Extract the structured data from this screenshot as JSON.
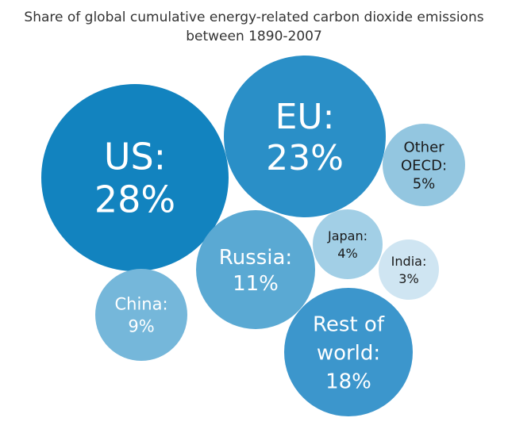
{
  "chart_data": {
    "type": "bubble",
    "title_lines": [
      "Share of global cumulative energy-related carbon dioxide emissions",
      "between 1890-2007"
    ],
    "unit": "%",
    "series": [
      {
        "name": "US",
        "label_lines": [
          "US:",
          "28%"
        ],
        "value": 28,
        "color": "#1283bf"
      },
      {
        "name": "EU",
        "label_lines": [
          "EU:",
          "23%"
        ],
        "value": 23,
        "color": "#2a8fc7"
      },
      {
        "name": "Other OECD",
        "label_lines": [
          "Other",
          "OECD:",
          "5%"
        ],
        "value": 5,
        "color": "#93c6e0"
      },
      {
        "name": "Russia",
        "label_lines": [
          "Russia:",
          "11%"
        ],
        "value": 11,
        "color": "#5aa9d3"
      },
      {
        "name": "Japan",
        "label_lines": [
          "Japan:",
          "4%"
        ],
        "value": 4,
        "color": "#a2cfe6"
      },
      {
        "name": "India",
        "label_lines": [
          "India:",
          "3%"
        ],
        "value": 3,
        "color": "#cfe5f2"
      },
      {
        "name": "China",
        "label_lines": [
          "China:",
          "9%"
        ],
        "value": 9,
        "color": "#75b7da"
      },
      {
        "name": "Rest of world",
        "label_lines": [
          "Rest of",
          "world:",
          "18%"
        ],
        "value": 18,
        "color": "#3c96cc"
      }
    ]
  }
}
